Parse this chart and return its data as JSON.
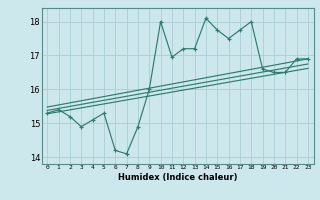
{
  "title": "",
  "xlabel": "Humidex (Indice chaleur)",
  "ylabel": "",
  "bg_color": "#cce8ec",
  "line_color": "#2d7d6e",
  "grid_color": "#aacdd4",
  "xlim": [
    -0.5,
    23.5
  ],
  "ylim": [
    13.8,
    18.4
  ],
  "xticks": [
    0,
    1,
    2,
    3,
    4,
    5,
    6,
    7,
    8,
    9,
    10,
    11,
    12,
    13,
    14,
    15,
    16,
    17,
    18,
    19,
    20,
    21,
    22,
    23
  ],
  "yticks": [
    14,
    15,
    16,
    17,
    18
  ],
  "main_x": [
    0,
    1,
    2,
    3,
    4,
    5,
    6,
    7,
    8,
    9,
    10,
    11,
    12,
    13,
    14,
    15,
    16,
    17,
    18,
    19,
    20,
    21,
    22,
    23
  ],
  "main_y": [
    15.3,
    15.4,
    15.2,
    14.9,
    15.1,
    15.3,
    14.2,
    14.1,
    14.9,
    16.0,
    18.0,
    16.95,
    17.2,
    17.2,
    18.1,
    17.75,
    17.5,
    17.75,
    18.0,
    16.6,
    16.5,
    16.5,
    16.9,
    16.9
  ],
  "line1_x": [
    0,
    23
  ],
  "line1_y": [
    15.28,
    16.62
  ],
  "line2_x": [
    0,
    23
  ],
  "line2_y": [
    15.38,
    16.75
  ],
  "line3_x": [
    0,
    23
  ],
  "line3_y": [
    15.48,
    16.9
  ]
}
